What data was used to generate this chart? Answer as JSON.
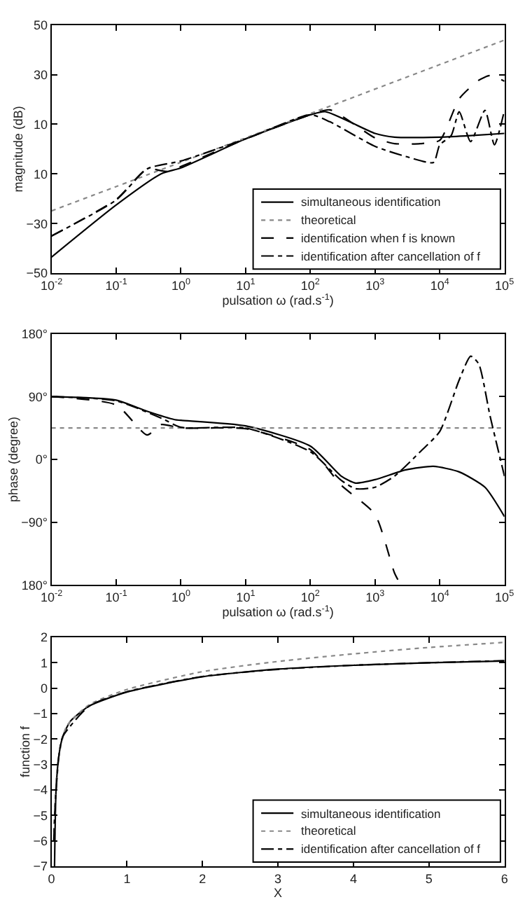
{
  "chart_data": [
    {
      "type": "line",
      "xlabel": "pulsation ω (rad.s$^{-1}$)",
      "ylabel": "magnitude (dB)",
      "log": "x",
      "xlim": [
        0.01,
        100000
      ],
      "xticks": [
        {
          "value": 0.01,
          "label": "10$^{-2}$"
        },
        {
          "value": 0.1,
          "label": "10$^{-1}$"
        },
        {
          "value": 1,
          "label": "10$^{0}$"
        },
        {
          "value": 10,
          "label": "10$^{1}$"
        },
        {
          "value": 100,
          "label": "10$^{2}$"
        },
        {
          "value": 1000,
          "label": "10$^{3}$"
        },
        {
          "value": 10000,
          "label": "10$^{4}$"
        },
        {
          "value": 100000,
          "label": "10$^{5}$"
        }
      ],
      "ylim": [
        -50,
        50
      ],
      "yticks": [
        {
          "value": -50,
          "label": "−50"
        },
        {
          "value": -30,
          "label": "−30"
        },
        {
          "value": -10,
          "label": "10"
        },
        10,
        30,
        50
      ],
      "legend": "bottom right",
      "series": [
        {
          "name": "simultaneous identification",
          "color": "#000000",
          "line_style": "solid",
          "x": [
            0.01,
            0.1,
            0.5,
            1,
            10,
            100,
            170,
            1000,
            2000,
            10000,
            30000,
            100000
          ],
          "values": [
            -43.5,
            -22.5,
            -9.9,
            -7.6,
            4.1,
            13.8,
            15.1,
            6.3,
            4.8,
            4.8,
            5.4,
            6.3
          ]
        },
        {
          "name": "theoretical",
          "color": "#888888",
          "line_style": "dotted",
          "x": [
            0.01,
            1,
            100,
            100000
          ],
          "values": [
            -24.9,
            -5.3,
            14.3,
            43.9
          ]
        },
        {
          "name": "identification when f is known",
          "color": "#000000",
          "line_style": "dashed",
          "x": [
            0.01,
            0.1,
            0.3,
            0.6,
            1,
            10,
            100,
            200,
            1000,
            2000,
            5000,
            10000,
            20000,
            40000,
            60000,
            100000
          ],
          "values": [
            -35,
            -20.3,
            -8,
            -9,
            -7,
            4.1,
            13.8,
            15.8,
            4.5,
            2.2,
            2.2,
            3.5,
            20.3,
            27.7,
            29.6,
            27.3
          ]
        },
        {
          "name": "identification after cancellation of f",
          "color": "#000000",
          "line_style": "dashdot",
          "x": [
            0.01,
            0.1,
            0.3,
            1,
            10,
            100,
            200,
            1000,
            3000,
            8000,
            10000,
            15000,
            20000,
            30000,
            50000,
            70000,
            100000
          ],
          "values": [
            -35,
            -20.5,
            -8,
            -4.8,
            4.1,
            13.8,
            11,
            1.1,
            -3,
            -5.4,
            1.7,
            5.4,
            15,
            3,
            15.6,
            1.7,
            15.6
          ]
        }
      ]
    },
    {
      "type": "line",
      "xlabel": "pulsation ω (rad.s$^{-1}$)",
      "ylabel": "phase (degree)",
      "log": "x",
      "xlim": [
        0.01,
        100000
      ],
      "xticks": [
        {
          "value": 0.01,
          "label": "10$^{-2}$"
        },
        {
          "value": 0.1,
          "label": "10$^{-1}$"
        },
        {
          "value": 1,
          "label": "10$^{0}$"
        },
        {
          "value": 10,
          "label": "10$^{1}$"
        },
        {
          "value": 100,
          "label": "10$^{2}$"
        },
        {
          "value": 1000,
          "label": "10$^{3}$"
        },
        {
          "value": 10000,
          "label": "10$^{4}$"
        },
        {
          "value": 100000,
          "label": "10$^{5}$"
        }
      ],
      "ylim": [
        -180,
        180
      ],
      "yticks": [
        {
          "value": -180,
          "label": "180°"
        },
        {
          "value": -90,
          "label": "−90°"
        },
        {
          "value": 0,
          "label": "0°"
        },
        {
          "value": 90,
          "label": "90°"
        },
        {
          "value": 180,
          "label": "180°"
        }
      ],
      "series": [
        {
          "color": "#000000",
          "line_style": "solid",
          "x": [
            0.01,
            0.1,
            0.3,
            0.8,
            1,
            10,
            100,
            300,
            500,
            1000,
            3000,
            8000,
            20000,
            50000,
            100000
          ],
          "values": [
            90,
            85,
            69,
            57,
            56,
            48,
            19,
            -24,
            -34,
            -29,
            -15,
            -10,
            -18,
            -40,
            -82
          ]
        },
        {
          "color": "#888888",
          "line_style": "dotted",
          "x": [
            0.01,
            100000
          ],
          "values": [
            45,
            45
          ]
        },
        {
          "color": "#000000",
          "line_style": "dashed",
          "x": [
            0.01,
            0.1,
            0.3,
            0.5,
            1,
            10,
            100,
            300,
            1000,
            2000,
            2500
          ],
          "values": [
            90,
            78,
            35,
            50,
            45,
            44,
            14,
            -37,
            -79,
            -163,
            -180
          ]
        },
        {
          "color": "#000000",
          "line_style": "dashdot",
          "x": [
            0.01,
            0.1,
            0.5,
            1,
            10,
            100,
            300,
            500,
            1000,
            2000,
            5000,
            10000,
            20000,
            30000,
            40000,
            60000,
            100000
          ],
          "values": [
            90,
            84,
            59,
            46,
            45,
            11,
            -30,
            -42,
            -40,
            -24,
            11,
            40,
            114,
            148,
            137,
            62,
            -24
          ]
        }
      ]
    },
    {
      "type": "line",
      "xlabel": "X",
      "ylabel": "function f",
      "xlim": [
        0,
        6
      ],
      "xticks": [
        0,
        1,
        2,
        3,
        4,
        5,
        6
      ],
      "ylim": [
        -7,
        2
      ],
      "yticks": [
        {
          "value": -7,
          "label": "−7"
        },
        {
          "value": -6,
          "label": "−6"
        },
        {
          "value": -5,
          "label": "−5"
        },
        {
          "value": -4,
          "label": "−4"
        },
        {
          "value": -3,
          "label": "−3"
        },
        {
          "value": -2,
          "label": "−2"
        },
        {
          "value": -1,
          "label": "−1"
        },
        0,
        1,
        2
      ],
      "legend": "bottom right",
      "series": [
        {
          "name": "simultaneous identification",
          "color": "#000000",
          "line_style": "solid",
          "x": [
            0.04,
            0.06,
            0.1,
            0.15,
            0.25,
            0.5,
            1,
            2,
            3,
            4,
            5,
            6
          ],
          "values": [
            -7,
            -4,
            -2.6,
            -1.9,
            -1.3,
            -0.7,
            -0.15,
            0.45,
            0.75,
            0.9,
            1.0,
            1.07
          ]
        },
        {
          "name": "theoretical",
          "color": "#888888",
          "line_style": "dotted",
          "x": [
            0.03,
            0.08,
            0.2,
            0.5,
            1,
            2,
            3,
            4,
            5,
            6
          ],
          "values": [
            -6,
            -3,
            -1.5,
            -0.65,
            -0.05,
            0.65,
            1.05,
            1.35,
            1.6,
            1.8
          ]
        },
        {
          "name": "identification after cancellation of f",
          "color": "#000000",
          "line_style": "dashdot",
          "x": [
            0.03,
            0.05,
            0.1,
            0.15,
            0.5,
            1,
            2,
            3,
            4,
            5,
            6
          ],
          "values": [
            -6,
            -4.5,
            -2.6,
            -1.9,
            -0.7,
            -0.14,
            0.46,
            0.74,
            0.9,
            1.0,
            1.08
          ]
        }
      ]
    }
  ]
}
